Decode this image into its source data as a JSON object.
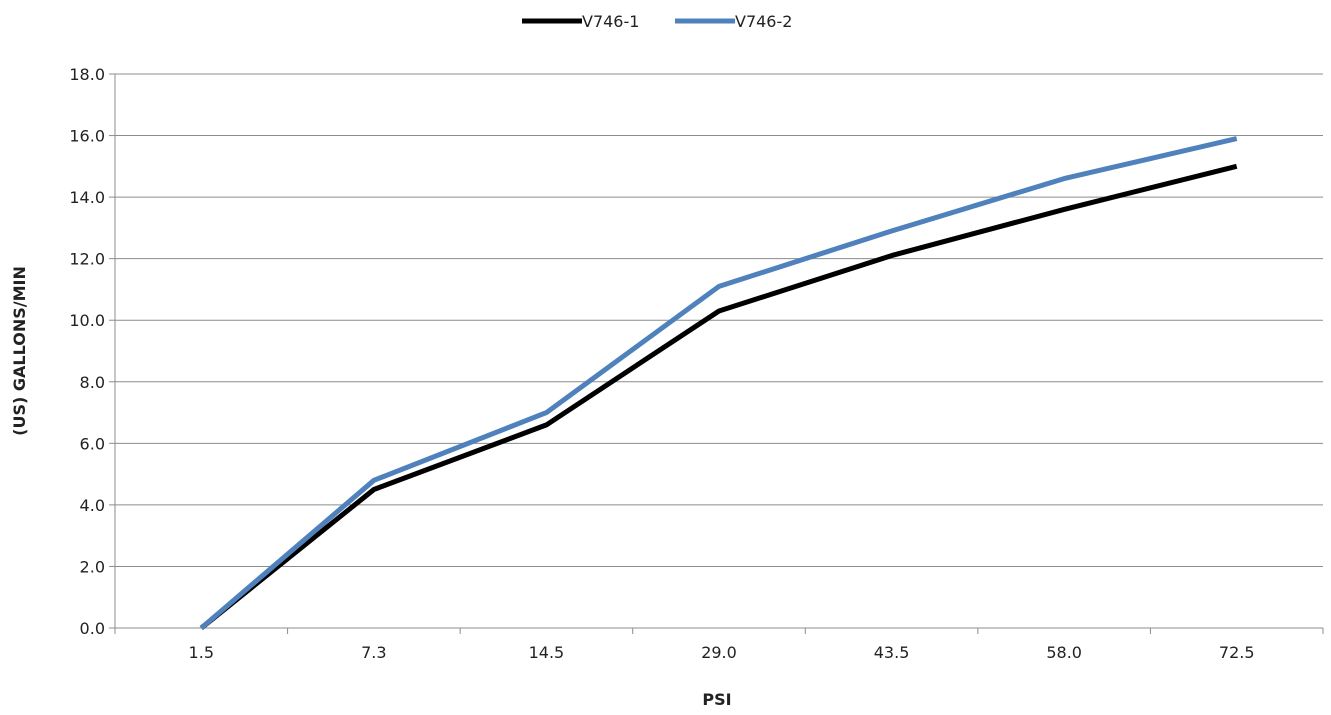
{
  "chart_data": {
    "type": "line",
    "title": "",
    "xlabel": "PSI",
    "ylabel": "(US) GALLONS/MIN",
    "categories": [
      "1.5",
      "7.3",
      "14.5",
      "29.0",
      "43.5",
      "58.0",
      "72.5"
    ],
    "series": [
      {
        "name": "V746-1",
        "color": "#000000",
        "values": [
          0.0,
          4.5,
          6.6,
          10.3,
          12.1,
          13.6,
          15.0
        ]
      },
      {
        "name": "V746-2",
        "color": "#4f81bd",
        "values": [
          0.0,
          4.8,
          7.0,
          11.1,
          12.9,
          14.6,
          15.9
        ]
      }
    ],
    "yticks": [
      "0.0",
      "2.0",
      "4.0",
      "6.0",
      "8.0",
      "10.0",
      "12.0",
      "14.0",
      "16.0",
      "18.0"
    ],
    "ylim": [
      0,
      18
    ],
    "grid": true,
    "legend": "top-center"
  }
}
